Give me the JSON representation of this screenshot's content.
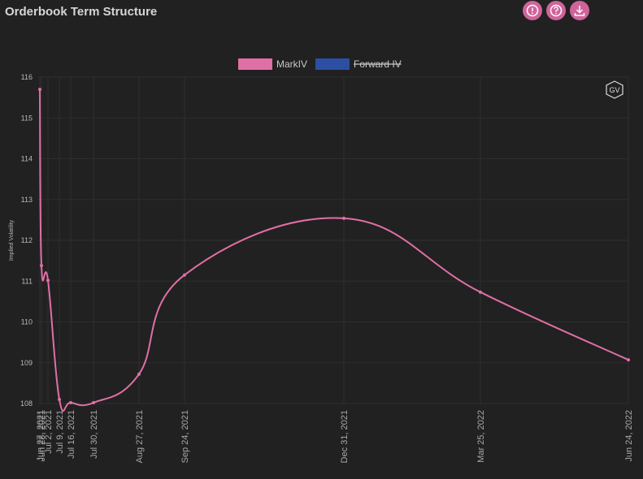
{
  "chart_data": {
    "type": "line",
    "title": "Orderbook Term Structure",
    "y_label": "Implied Volatility",
    "watermark": "GV",
    "x": [
      "Jun 27, 2021",
      "Jun 28, 2021",
      "Jul 2, 2021",
      "Jul 9, 2021",
      "Jul 16, 2021",
      "Jul 30, 2021",
      "Aug 27, 2021",
      "Sep 24, 2021",
      "Dec 31, 2021",
      "Mar 25, 2022",
      "Jun 24, 2022"
    ],
    "series": [
      {
        "name": "MarkIV",
        "color": "#e06fa6",
        "values": [
          115.7,
          111.38,
          111.02,
          108.1,
          108.02,
          108.02,
          108.72,
          111.15,
          112.54,
          110.73,
          109.07
        ]
      }
    ],
    "hidden_series": [
      {
        "name": "Forward IV",
        "color": "#2c4fa3"
      }
    ],
    "ylim": [
      108,
      116
    ],
    "yticks": [
      108,
      109,
      110,
      111,
      112,
      113,
      114,
      115,
      116
    ],
    "grid": true
  }
}
